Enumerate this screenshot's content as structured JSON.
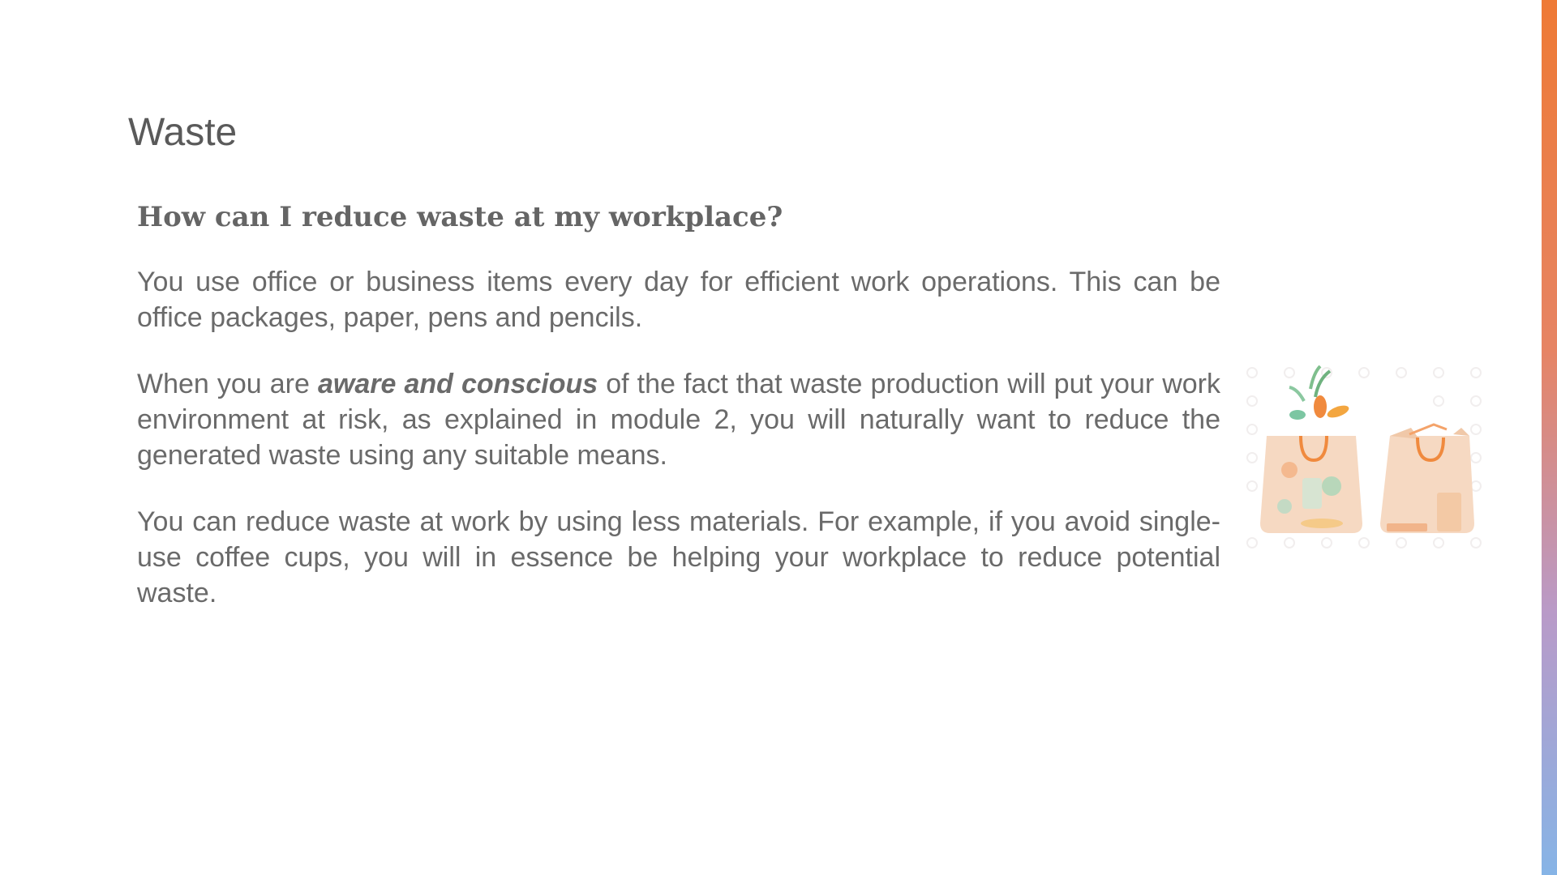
{
  "slide": {
    "title": "Waste",
    "heading": "How can I reduce waste at my workplace?",
    "paragraph1": "You use office or business items every day for efficient work operations. This can be office packages, paper, pens and pencils.",
    "paragraph2": {
      "before": "When you are ",
      "emphasis": "aware and conscious",
      "after": " of the fact that waste production will put your work environment at risk, as explained in module 2, you will naturally want to reduce the generated waste using any suitable means."
    },
    "paragraph3": "You can reduce waste at work by using less materials. For example, if you avoid single-use coffee cups, you will in essence be helping your workplace to reduce potential waste."
  },
  "illustration": {
    "icon": "shopping-bags-icon"
  },
  "colors": {
    "title": "#5a5a5a",
    "text": "#6a6a6a",
    "accent_top": "#ee7a35",
    "accent_bottom": "#86b4e6"
  }
}
